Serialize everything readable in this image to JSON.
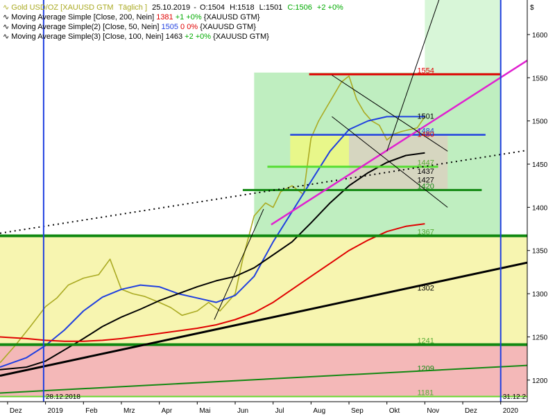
{
  "chart_data": {
    "type": "line",
    "instrument": "Gold USD/OZ [XAUUSD GTM",
    "interval": "Täglich",
    "quote": {
      "date": "25.10.2019",
      "open": "O:1504",
      "high": "H:1518",
      "low": "L:1501",
      "close": "C:1506",
      "change": "+2 +0%"
    },
    "header_suffix": "]",
    "indicators": [
      {
        "name": "Moving Average Simple [Close, 200, Nein]",
        "value": "1381",
        "change": "+1 +0%",
        "symbol": "{XAUUSD GTM}",
        "color": "#e00000",
        "value_color": "#e00000",
        "change_color": "#00aa00"
      },
      {
        "name": "Moving Average Simple(2) [Close, 50, Nein]",
        "value": "1505",
        "change": "0 0%",
        "symbol": "{XAUUSD GTM}",
        "color": "#1f3fe0",
        "value_color": "#1f3fe0",
        "change_color": "#e00000"
      },
      {
        "name": "Moving Average Simple(3) [Close, 100, Nein]",
        "value": "1463",
        "change": "+2 +0%",
        "symbol": "{XAUUSD GTM}",
        "color": "#000000",
        "value_color": "#000000",
        "change_color": "#00aa00"
      }
    ],
    "axis_currency": "$",
    "y_range": [
      1175,
      1640
    ],
    "y_ticks": [
      1200,
      1250,
      1300,
      1350,
      1400,
      1450,
      1500,
      1550,
      1600
    ],
    "x_range": [
      -1.2,
      12.7
    ],
    "x_ticks": [
      {
        "label": "Dez",
        "x": -1
      },
      {
        "label": "2019",
        "x": 0
      },
      {
        "label": "Feb",
        "x": 1
      },
      {
        "label": "Mrz",
        "x": 2
      },
      {
        "label": "Apr",
        "x": 3
      },
      {
        "label": "Mai",
        "x": 4
      },
      {
        "label": "Jun",
        "x": 5
      },
      {
        "label": "Jul",
        "x": 6
      },
      {
        "label": "Aug",
        "x": 7
      },
      {
        "label": "Sep",
        "x": 8
      },
      {
        "label": "Okt",
        "x": 9
      },
      {
        "label": "Nov",
        "x": 10
      },
      {
        "label": "Dez",
        "x": 11
      },
      {
        "label": "2020",
        "x": 12
      }
    ],
    "date_markers": [
      {
        "label": "28.12.2018",
        "x": -0.05,
        "color": "#1f3fe0"
      },
      {
        "label": "31.12.2",
        "x": 12.0,
        "color": "#1f3fe0"
      }
    ],
    "zones": [
      {
        "x": [
          -1.2,
          12.7
        ],
        "y": [
          1180,
          1240
        ],
        "color": "#f4b8b8"
      },
      {
        "x": [
          -1.2,
          12.7
        ],
        "y": [
          1240,
          1368
        ],
        "color": "#f7f5b0"
      },
      {
        "x": [
          5.5,
          12.0
        ],
        "y": [
          1368,
          1556
        ],
        "color": "#bfeec0"
      },
      {
        "x": [
          10.0,
          12.0
        ],
        "y": [
          1556,
          1640
        ],
        "color": "#d8f6d8"
      },
      {
        "x": [
          6.45,
          10.6
        ],
        "y": [
          1447,
          1484
        ],
        "color": "#e8f78a"
      },
      {
        "x": [
          8.0,
          10.6
        ],
        "y": [
          1420,
          1484
        ],
        "color": "#d6d6c0"
      }
    ],
    "levels": [
      {
        "value": "1554",
        "y": 1554,
        "x": [
          6.95,
          12.0
        ],
        "color": "#e00000",
        "label_color": "#e00000",
        "width": 3
      },
      {
        "value": "1501",
        "y": 1501,
        "x": null,
        "color": null,
        "label_color": "#000000",
        "width": 0
      },
      {
        "value": "1484",
        "y": 1484,
        "x": [
          6.45,
          11.6
        ],
        "color": "#1f3fe0",
        "label_color": "#1f3fe0",
        "width": 2.5
      },
      {
        "value": "1480",
        "y": 1480,
        "x": null,
        "color": null,
        "label_color": "#e00000",
        "width": 0
      },
      {
        "value": "1447",
        "y": 1447,
        "x": [
          5.85,
          10.35
        ],
        "color": "#55dd33",
        "label_color": "#55aa33",
        "width": 3
      },
      {
        "value": "1437",
        "y": 1437,
        "x": null,
        "color": null,
        "label_color": "#000000",
        "width": 0
      },
      {
        "value": "1427",
        "y": 1427,
        "x": null,
        "color": null,
        "label_color": "#000000",
        "width": 0
      },
      {
        "value": "1420",
        "y": 1420,
        "x": [
          5.2,
          11.5
        ],
        "color": "#118811",
        "label_color": "#118811",
        "width": 3
      },
      {
        "value": "1367",
        "y": 1367,
        "x": [
          -1.2,
          12.7
        ],
        "color": "#118811",
        "label_color": "#55aa33",
        "width": 4
      },
      {
        "value": "1302",
        "y": 1302,
        "x": null,
        "color": null,
        "label_color": "#000000",
        "width": 0
      },
      {
        "value": "1241",
        "y": 1241,
        "x": [
          -1.2,
          12.7
        ],
        "color": "#118811",
        "label_color": "#55aa33",
        "width": 4
      },
      {
        "value": "1209",
        "y": 1209,
        "x": null,
        "color": null,
        "label_color": "#118811",
        "width": 0
      },
      {
        "value": "1181",
        "y": 1181,
        "x": [
          -1.2,
          12.7
        ],
        "color": "#66dd33",
        "label_color": "#55aa33",
        "width": 2
      }
    ],
    "trendlines": [
      {
        "x": [
          -1.2,
          12.7
        ],
        "y": [
          1205,
          1336
        ],
        "color": "#000000",
        "width": 3,
        "dash": false
      },
      {
        "x": [
          -1.2,
          12.7
        ],
        "y": [
          1185,
          1217
        ],
        "color": "#118811",
        "width": 2,
        "dash": false
      },
      {
        "x": [
          -1.2,
          12.7
        ],
        "y": [
          1370,
          1466
        ],
        "color": "#000000",
        "width": 2,
        "dash": true
      },
      {
        "x": [
          5.95,
          12.7
        ],
        "y": [
          1380,
          1570
        ],
        "color": "#e020d0",
        "width": 2.5,
        "dash": false
      },
      {
        "x": [
          4.45,
          5.75
        ],
        "y": [
          1270,
          1398
        ],
        "color": "#000000",
        "width": 1,
        "dash": false
      },
      {
        "x": [
          9.0,
          10.45
        ],
        "y": [
          1465,
          1650
        ],
        "color": "#000000",
        "width": 1,
        "dash": false
      },
      {
        "x": [
          7.55,
          10.6
        ],
        "y": [
          1553,
          1465
        ],
        "color": "#000000",
        "width": 1,
        "dash": false
      },
      {
        "x": [
          7.55,
          10.6
        ],
        "y": [
          1505,
          1400
        ],
        "color": "#000000",
        "width": 1,
        "dash": false
      }
    ],
    "series": [
      {
        "name": "Gold USD/OZ",
        "color": "#aaaa22",
        "x": [
          -1.2,
          -0.8,
          -0.4,
          0.0,
          0.3,
          0.6,
          1.0,
          1.4,
          1.7,
          2.0,
          2.3,
          2.6,
          3.0,
          3.3,
          3.6,
          4.0,
          4.3,
          4.6,
          5.0,
          5.2,
          5.5,
          5.8,
          6.0,
          6.2,
          6.5,
          6.8,
          7.0,
          7.2,
          7.4,
          7.6,
          7.8,
          8.0,
          8.2,
          8.4,
          8.6,
          8.8,
          9.0,
          9.2,
          9.4,
          9.6,
          9.8,
          10.0
        ],
        "y": [
          1220,
          1240,
          1262,
          1285,
          1295,
          1310,
          1318,
          1322,
          1340,
          1305,
          1300,
          1297,
          1290,
          1284,
          1275,
          1280,
          1290,
          1280,
          1300,
          1340,
          1390,
          1405,
          1400,
          1418,
          1425,
          1415,
          1480,
          1500,
          1515,
          1530,
          1545,
          1552,
          1525,
          1510,
          1500,
          1495,
          1478,
          1485,
          1488,
          1490,
          1492,
          1505
        ]
      },
      {
        "name": "Moving Average Simple(2) [Close, 50, Nein]",
        "color": "#1f3fe0",
        "x": [
          -1.2,
          -0.5,
          0.0,
          0.5,
          1.0,
          1.5,
          2.0,
          2.5,
          3.0,
          3.5,
          4.0,
          4.5,
          5.0,
          5.5,
          6.0,
          6.5,
          7.0,
          7.5,
          8.0,
          8.5,
          9.0,
          9.5,
          10.0
        ],
        "y": [
          1215,
          1226,
          1240,
          1258,
          1280,
          1296,
          1305,
          1310,
          1308,
          1300,
          1295,
          1290,
          1298,
          1320,
          1360,
          1395,
          1430,
          1465,
          1490,
          1500,
          1505,
          1505,
          1505
        ]
      },
      {
        "name": "Moving Average Simple(3) [Close, 100, Nein]",
        "color": "#000000",
        "x": [
          -1.2,
          -0.5,
          0.0,
          0.5,
          1.0,
          1.5,
          2.0,
          2.5,
          3.0,
          3.5,
          4.0,
          4.5,
          5.0,
          5.5,
          6.0,
          6.5,
          7.0,
          7.5,
          8.0,
          8.5,
          9.0,
          9.5,
          10.0
        ],
        "y": [
          1212,
          1215,
          1222,
          1235,
          1248,
          1262,
          1273,
          1282,
          1292,
          1300,
          1308,
          1315,
          1320,
          1330,
          1345,
          1360,
          1382,
          1405,
          1425,
          1440,
          1452,
          1460,
          1463
        ]
      },
      {
        "name": "Moving Average Simple [Close, 200, Nein]",
        "color": "#e00000",
        "x": [
          -1.2,
          -0.5,
          0.0,
          0.5,
          1.0,
          1.5,
          2.0,
          2.5,
          3.0,
          3.5,
          4.0,
          4.5,
          5.0,
          5.5,
          6.0,
          6.5,
          7.0,
          7.5,
          8.0,
          8.5,
          9.0,
          9.5,
          10.0
        ],
        "y": [
          1250,
          1248,
          1246,
          1245,
          1245,
          1246,
          1248,
          1251,
          1254,
          1257,
          1260,
          1264,
          1270,
          1278,
          1290,
          1305,
          1320,
          1335,
          1350,
          1362,
          1372,
          1378,
          1381
        ]
      }
    ]
  }
}
